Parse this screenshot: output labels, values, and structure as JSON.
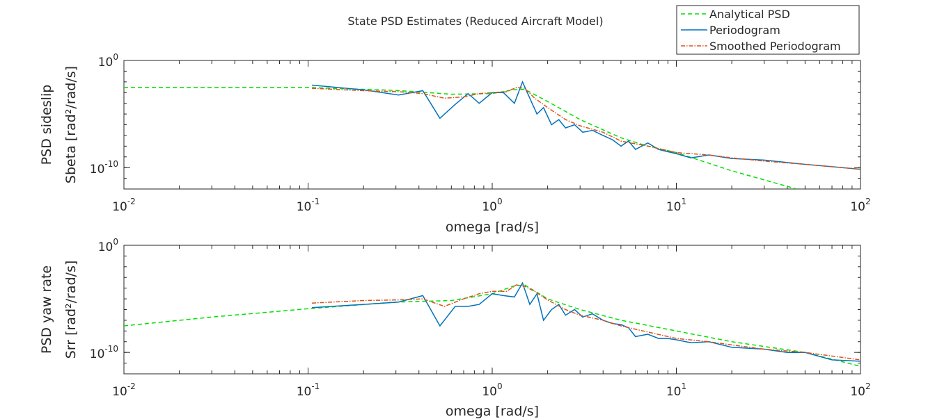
{
  "chart_data": {
    "type": "line",
    "title": "State PSD Estimates (Reduced Aircraft Model)",
    "legend": {
      "placement": "top-right",
      "entries": [
        "Analytical PSD",
        "Periodogram",
        "Smoothed Periodogram"
      ]
    },
    "colors": {
      "analytical": "#00e000",
      "periodogram": "#0072bd",
      "smoothed": "#d95319"
    },
    "subplots": [
      {
        "xlabel": "omega [rad/s]",
        "ylabel_line1": "PSD sideslip",
        "ylabel_line2": "Sbeta [rad²/rad/s]",
        "xscale": "log",
        "yscale": "log",
        "xlim": [
          0.01,
          100
        ],
        "ylim": [
          1e-12,
          1
        ],
        "xticks": [
          {
            "base": "10",
            "exp": "-2"
          },
          {
            "base": "10",
            "exp": "-1"
          },
          {
            "base": "10",
            "exp": "0"
          },
          {
            "base": "10",
            "exp": "1"
          },
          {
            "base": "10",
            "exp": "2"
          }
        ],
        "yticks": [
          {
            "base": "10",
            "exp": "-10",
            "value": 1e-10
          },
          {
            "base": "10",
            "exp": "0",
            "value": 1
          }
        ],
        "series": [
          {
            "name": "Analytical PSD",
            "style": "dashed",
            "x": [
              0.01,
              0.1,
              0.3,
              0.6,
              1.0,
              1.3,
              1.5,
              2.0,
              3.0,
              5.0,
              7.0,
              10,
              20,
              45
            ],
            "y": [
              0.003,
              0.003,
              0.0016,
              0.0007,
              0.0008,
              0.0018,
              0.002,
              0.00015,
              3e-06,
              6e-08,
              1e-08,
              2.5e-09,
              5e-11,
              1e-12
            ]
          },
          {
            "name": "Periodogram",
            "style": "solid",
            "x": [
              0.105,
              0.2,
              0.31,
              0.42,
              0.52,
              0.63,
              0.74,
              0.85,
              1.0,
              1.15,
              1.32,
              1.46,
              1.6,
              1.75,
              1.9,
              2.1,
              2.3,
              2.5,
              2.8,
              3.1,
              3.5,
              4.0,
              4.5,
              5.0,
              5.5,
              6.0,
              7.0,
              8.0,
              9.0,
              10,
              12,
              15,
              20,
              30,
              50,
              70,
              100
            ],
            "y": [
              0.005,
              0.0018,
              0.0006,
              0.0015,
              4e-06,
              8e-05,
              0.0008,
              0.0001,
              0.001,
              0.001,
              0.0001,
              0.01,
              0.0003,
              1e-05,
              4e-05,
              1e-06,
              3e-06,
              5e-07,
              1e-06,
              2e-07,
              3e-07,
              1e-07,
              4e-08,
              1e-08,
              3e-08,
              5e-09,
              2e-08,
              5e-09,
              3e-09,
              2e-09,
              8e-10,
              1.5e-09,
              7e-10,
              5e-10,
              2e-10,
              1.2e-10,
              7e-11
            ]
          },
          {
            "name": "Smoothed Periodogram",
            "style": "dashdot",
            "x": [
              0.105,
              0.2,
              0.31,
              0.42,
              0.55,
              0.7,
              0.85,
              1.0,
              1.2,
              1.35,
              1.5,
              1.7,
              2.0,
              2.5,
              3.0,
              4.0,
              5.0,
              7.0,
              10,
              15,
              20,
              30,
              50,
              100
            ],
            "y": [
              0.0025,
              0.0015,
              0.0012,
              0.0008,
              0.0003,
              0.0004,
              0.0008,
              0.001,
              0.0012,
              0.003,
              0.0025,
              0.0003,
              4e-05,
              3e-06,
              8e-07,
              2e-07,
              3e-08,
              1e-08,
              2.5e-09,
              1.5e-09,
              8e-10,
              4e-10,
              2e-10,
              7e-11
            ]
          }
        ]
      },
      {
        "xlabel": "omega [rad/s]",
        "ylabel_line1": "PSD yaw rate",
        "ylabel_line2": "Srr [rad²/rad/s]",
        "xscale": "log",
        "yscale": "log",
        "xlim": [
          0.01,
          100
        ],
        "ylim": [
          1e-12,
          1
        ],
        "xticks": [
          {
            "base": "10",
            "exp": "-2"
          },
          {
            "base": "10",
            "exp": "-1"
          },
          {
            "base": "10",
            "exp": "0"
          },
          {
            "base": "10",
            "exp": "1"
          },
          {
            "base": "10",
            "exp": "2"
          }
        ],
        "yticks": [
          {
            "base": "10",
            "exp": "-10",
            "value": 1e-10
          },
          {
            "base": "10",
            "exp": "0",
            "value": 1
          }
        ],
        "series": [
          {
            "name": "Analytical PSD",
            "style": "dashed",
            "x": [
              0.01,
              0.03,
              0.1,
              0.3,
              0.6,
              1.0,
              1.3,
              1.5,
              2.0,
              3.0,
              5.0,
              10,
              20,
              50,
              100
            ],
            "y": [
              3e-08,
              2e-07,
              1.2e-06,
              5e-06,
              7e-06,
              3e-05,
              0.00015,
              0.0002,
              1e-05,
              1e-06,
              1e-07,
              1e-08,
              1e-09,
              1e-10,
              5e-12
            ]
          },
          {
            "name": "Periodogram",
            "style": "solid",
            "x": [
              0.105,
              0.2,
              0.31,
              0.42,
              0.52,
              0.63,
              0.74,
              0.85,
              1.0,
              1.15,
              1.32,
              1.46,
              1.6,
              1.75,
              1.9,
              2.1,
              2.3,
              2.5,
              2.8,
              3.1,
              3.5,
              4.0,
              4.5,
              5.0,
              5.5,
              6.0,
              7.0,
              8.0,
              9.0,
              10,
              12,
              15,
              20,
              30,
              40,
              50,
              70,
              100
            ],
            "y": [
              1.5e-06,
              3e-06,
              5e-06,
              2e-05,
              3e-08,
              2e-06,
              2e-06,
              3e-06,
              3e-05,
              2e-05,
              1.5e-05,
              0.0003,
              3e-06,
              3e-05,
              1e-07,
              1e-06,
              3e-06,
              3e-07,
              1e-06,
              2e-07,
              4e-07,
              1e-07,
              5e-08,
              4e-08,
              2e-08,
              3e-09,
              5e-09,
              2e-09,
              2e-09,
              1.5e-09,
              8e-10,
              1e-09,
              3e-10,
              2e-10,
              1e-10,
              1e-10,
              2e-11,
              1.5e-11
            ]
          },
          {
            "name": "Smoothed Periodogram",
            "style": "dashdot",
            "x": [
              0.105,
              0.2,
              0.31,
              0.42,
              0.55,
              0.7,
              0.85,
              1.0,
              1.2,
              1.35,
              1.5,
              1.7,
              2.0,
              2.5,
              3.0,
              4.0,
              5.0,
              7.0,
              10,
              15,
              20,
              30,
              50,
              100
            ],
            "y": [
              4e-06,
              7e-06,
              8e-06,
              1e-05,
              2e-06,
              1e-05,
              3e-05,
              5e-05,
              5e-05,
              0.0002,
              0.00015,
              5e-05,
              8e-06,
              1e-06,
              3e-07,
              1e-07,
              3e-08,
              8e-09,
              2e-09,
              1e-09,
              5e-10,
              2e-10,
              1e-10,
              2e-11
            ]
          }
        ]
      }
    ]
  }
}
